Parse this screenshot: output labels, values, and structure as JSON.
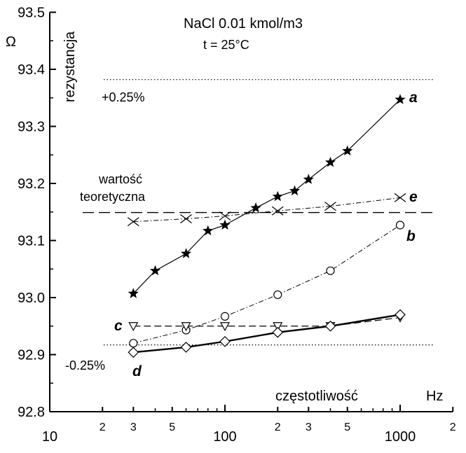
{
  "chart_data": {
    "type": "line",
    "title": "NaCl  0.01 kmol/m3",
    "subtitle": "t = 25°C",
    "xlabel": "częstotliwość",
    "xunit": "Hz",
    "ylabel": "rezystancja",
    "yunit": "Ω",
    "xscale": "log",
    "xlim": [
      10,
      2000
    ],
    "ylim": [
      92.8,
      93.5
    ],
    "grid": false,
    "x_ticks": [
      {
        "value": 10,
        "label": "10",
        "major": true
      },
      {
        "value": 20,
        "label": "2",
        "major": false
      },
      {
        "value": 30,
        "label": "3",
        "major": false
      },
      {
        "value": 50,
        "label": "5",
        "major": false
      },
      {
        "value": 100,
        "label": "100",
        "major": true
      },
      {
        "value": 200,
        "label": "2",
        "major": false
      },
      {
        "value": 300,
        "label": "3",
        "major": false
      },
      {
        "value": 500,
        "label": "5",
        "major": false
      },
      {
        "value": 1000,
        "label": "1000",
        "major": true
      },
      {
        "value": 2000,
        "label": "2",
        "major": false
      }
    ],
    "y_ticks": [
      "92.8",
      "92.9",
      "93.0",
      "93.1",
      "93.2",
      "93.3",
      "93.4",
      "93.5"
    ],
    "annotations": {
      "theoretical_label_line1": "wartość",
      "theoretical_label_line2": "teoretyczna",
      "theoretical_value": 93.149,
      "upper_limit_label": "+0.25%",
      "upper_limit_value": 93.382,
      "lower_limit_label": "-0.25%",
      "lower_limit_value": 92.917
    },
    "series": [
      {
        "name": "a",
        "marker": "star",
        "line": "solid",
        "x": [
          30,
          40,
          60,
          80,
          100,
          150,
          200,
          250,
          300,
          400,
          500,
          1000
        ],
        "y": [
          93.007,
          93.047,
          93.077,
          93.117,
          93.127,
          93.157,
          93.177,
          93.187,
          93.207,
          93.237,
          93.257,
          93.347
        ]
      },
      {
        "name": "b",
        "marker": "circle",
        "line": "dash-dot",
        "x": [
          30,
          60,
          100,
          200,
          400,
          1000
        ],
        "y": [
          92.92,
          92.943,
          92.967,
          93.005,
          93.047,
          93.127
        ]
      },
      {
        "name": "c",
        "marker": "triangle-down",
        "line": "dashed",
        "x": [
          30,
          60,
          100,
          200,
          400,
          1000
        ],
        "y": [
          92.95,
          92.95,
          92.95,
          92.95,
          92.95,
          92.965
        ]
      },
      {
        "name": "d",
        "marker": "diamond",
        "line": "solid-thick",
        "x": [
          30,
          60,
          100,
          200,
          400,
          1000
        ],
        "y": [
          92.904,
          92.913,
          92.923,
          92.939,
          92.95,
          92.97
        ]
      },
      {
        "name": "e",
        "marker": "x",
        "line": "dash-dot",
        "x": [
          30,
          60,
          100,
          200,
          400,
          1000
        ],
        "y": [
          93.133,
          93.138,
          93.143,
          93.152,
          93.16,
          93.175
        ]
      }
    ]
  }
}
